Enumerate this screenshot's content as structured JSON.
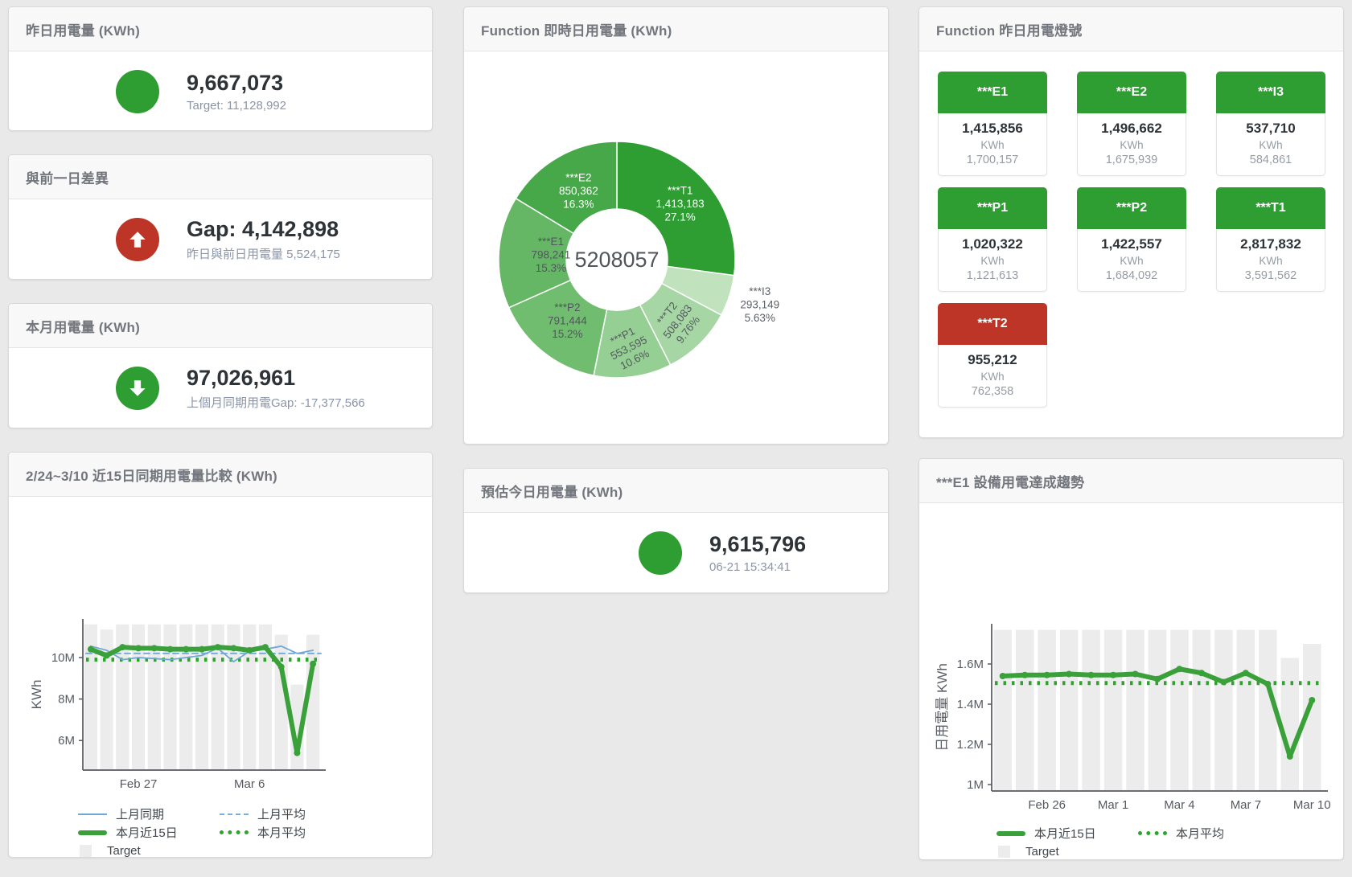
{
  "colors": {
    "green": "#2e9d32",
    "red": "#bd3526",
    "blue_line": "#71a7d7",
    "thick_green_line": "#3aa13a",
    "target_bar_gray": "#ececec",
    "axis_gray": "#54585e"
  },
  "stat_cards": {
    "yesterday": {
      "title": "昨日用電量 (KWh)",
      "value": "9,667,073",
      "subtitle": "Target: 11,128,992",
      "indicator": "green-circle"
    },
    "diff": {
      "title": "與前一日差異",
      "value": "Gap: 4,142,898",
      "subtitle": "昨日與前日用電量 5,524,175",
      "indicator": "red-up-arrow"
    },
    "month": {
      "title": "本月用電量 (KWh)",
      "value": "97,026,961",
      "subtitle": "上個月同期用電Gap: -17,377,566",
      "indicator": "green-down-arrow"
    },
    "estimate": {
      "title": "預估今日用電量 (KWh)",
      "value": "9,615,796",
      "subtitle": "06-21 15:34:41",
      "indicator": "green-circle"
    }
  },
  "tiles_card": {
    "title": "Function 昨日用電燈號",
    "tiles": [
      {
        "label": "***E1",
        "value": "1,415,856",
        "unit": "KWh",
        "target": "1,700,157",
        "status": "green"
      },
      {
        "label": "***E2",
        "value": "1,496,662",
        "unit": "KWh",
        "target": "1,675,939",
        "status": "green"
      },
      {
        "label": "***I3",
        "value": "537,710",
        "unit": "KWh",
        "target": "584,861",
        "status": "green"
      },
      {
        "label": "***P1",
        "value": "1,020,322",
        "unit": "KWh",
        "target": "1,121,613",
        "status": "green"
      },
      {
        "label": "***P2",
        "value": "1,422,557",
        "unit": "KWh",
        "target": "1,684,092",
        "status": "green"
      },
      {
        "label": "***T1",
        "value": "2,817,832",
        "unit": "KWh",
        "target": "3,591,562",
        "status": "green"
      },
      {
        "label": "***T2",
        "value": "955,212",
        "unit": "KWh",
        "target": "762,358",
        "status": "red"
      }
    ]
  },
  "chart_data": [
    {
      "id": "donut",
      "type": "pie",
      "title": "Function 即時日用電量 (KWh)",
      "center_total": "5208057",
      "slices": [
        {
          "name": "***T1",
          "value": 1413183,
          "value_text": "1,413,183",
          "pct_text": "27.1%",
          "color": "#2e9d32",
          "label_color": "#ffffff",
          "label_r": 0.71,
          "rotate": 0
        },
        {
          "name": "***I3",
          "value": 293149,
          "value_text": "293,149",
          "pct_text": "5.63%",
          "color": "#c0e3bd",
          "label_color": "#5c6167",
          "label_r": 1.27,
          "rotate": 0
        },
        {
          "name": "***T2",
          "value": 508083,
          "value_text": "508,083",
          "pct_text": "9.76%",
          "color": "#a5d6a3",
          "label_color": "#555b60",
          "label_r": 0.74,
          "rotate": -52
        },
        {
          "name": "***P1",
          "value": 553595,
          "value_text": "553,595",
          "pct_text": "10.6%",
          "color": "#95cf93",
          "label_color": "#555b60",
          "label_r": 0.76,
          "rotate": -27
        },
        {
          "name": "***P2",
          "value": 791444,
          "value_text": "791,444",
          "pct_text": "15.2%",
          "color": "#70bd6f",
          "label_color": "#50575d",
          "label_r": 0.67,
          "rotate": 0
        },
        {
          "name": "***E1",
          "value": 798241,
          "value_text": "798,241",
          "pct_text": "15.3%",
          "color": "#66b765",
          "label_color": "#50575d",
          "label_r": 0.56,
          "rotate": 0
        },
        {
          "name": "***E2",
          "value": 850362,
          "value_text": "850,362",
          "pct_text": "16.3%",
          "color": "#47a84a",
          "label_color": "#ffffff",
          "label_r": 0.66,
          "rotate": 0
        }
      ]
    },
    {
      "id": "compare",
      "type": "line",
      "title": "2/24~3/10 近15日同期用電量比較 (KWh)",
      "ylabel": "KWh",
      "values_unit": "millions of KWh",
      "x": [
        "2/24",
        "2/25",
        "2/26",
        "2/27",
        "2/28",
        "3/1",
        "3/2",
        "3/3",
        "3/4",
        "3/5",
        "3/6",
        "3/7",
        "3/8",
        "3/9",
        "3/10"
      ],
      "yticks": [
        {
          "v": 6,
          "label": "6M"
        },
        {
          "v": 8,
          "label": "8M"
        },
        {
          "v": 10,
          "label": "10M"
        }
      ],
      "xticks": [
        {
          "i": 3,
          "label": "Feb 27"
        },
        {
          "i": 10,
          "label": "Mar 6"
        }
      ],
      "series": [
        {
          "name": "Target",
          "type": "bar",
          "color": "#ececec",
          "values": [
            11.6,
            11.35,
            11.6,
            11.6,
            11.6,
            11.6,
            11.6,
            11.6,
            11.6,
            11.6,
            11.6,
            11.6,
            11.1,
            8.7,
            11.1
          ]
        },
        {
          "name": "上月平均",
          "type": "line",
          "dash": "dashed",
          "width": 2,
          "color": "#77acdb",
          "values": 10.2
        },
        {
          "name": "本月平均",
          "type": "line",
          "dash": "dotted",
          "width": 5,
          "color": "#2ea32e",
          "values": 9.9
        },
        {
          "name": "上月同期",
          "type": "line",
          "dash": "solid",
          "width": 1.8,
          "color": "#71a7d7",
          "values": [
            10.55,
            10.35,
            9.9,
            10.0,
            9.95,
            9.9,
            10.0,
            10.1,
            10.45,
            9.8,
            10.3,
            10.4,
            10.55,
            10.2,
            10.35
          ]
        },
        {
          "name": "本月近15日",
          "type": "line",
          "dash": "solid",
          "width": 6,
          "color": "#3aa13a",
          "markers": true,
          "values": [
            10.4,
            10.1,
            10.5,
            10.45,
            10.45,
            10.4,
            10.4,
            10.4,
            10.5,
            10.45,
            10.35,
            10.5,
            9.55,
            5.4,
            9.7
          ]
        }
      ],
      "legend_rows": [
        [
          "上月同期",
          "上月平均"
        ],
        [
          "本月近15日",
          "本月平均"
        ],
        [
          "Target"
        ]
      ]
    },
    {
      "id": "trend",
      "type": "line",
      "title": "***E1 設備用電達成趨勢",
      "ylabel": "日用電量 KWh",
      "values_unit": "millions of KWh",
      "x": [
        "2/24",
        "2/25",
        "2/26",
        "2/27",
        "2/28",
        "3/1",
        "3/2",
        "3/3",
        "3/4",
        "3/5",
        "3/6",
        "3/7",
        "3/8",
        "3/9",
        "3/10"
      ],
      "yticks": [
        {
          "v": 1,
          "label": "1M"
        },
        {
          "v": 1.2,
          "label": "1.2M"
        },
        {
          "v": 1.4,
          "label": "1.4M"
        },
        {
          "v": 1.6,
          "label": "1.6M"
        }
      ],
      "xticks": [
        {
          "i": 2,
          "label": "Feb 26"
        },
        {
          "i": 5,
          "label": "Mar 1"
        },
        {
          "i": 8,
          "label": "Mar 4"
        },
        {
          "i": 11,
          "label": "Mar 7"
        },
        {
          "i": 14,
          "label": "Mar 10"
        }
      ],
      "series": [
        {
          "name": "Target",
          "type": "bar",
          "color": "#ececec",
          "values": [
            1.77,
            1.77,
            1.77,
            1.77,
            1.77,
            1.77,
            1.77,
            1.77,
            1.77,
            1.77,
            1.77,
            1.77,
            1.77,
            1.63,
            1.7
          ]
        },
        {
          "name": "本月平均",
          "type": "line",
          "dash": "dotted",
          "width": 5,
          "color": "#2ea32e",
          "values": 1.505
        },
        {
          "name": "本月近15日",
          "type": "line",
          "dash": "solid",
          "width": 6,
          "color": "#3aa13a",
          "markers": true,
          "values": [
            1.54,
            1.545,
            1.545,
            1.55,
            1.545,
            1.545,
            1.55,
            1.525,
            1.575,
            1.555,
            1.51,
            1.555,
            1.5,
            1.14,
            1.42
          ]
        }
      ],
      "legend_rows": [
        [
          "本月近15日",
          "本月平均"
        ],
        [
          "Target"
        ]
      ]
    }
  ]
}
